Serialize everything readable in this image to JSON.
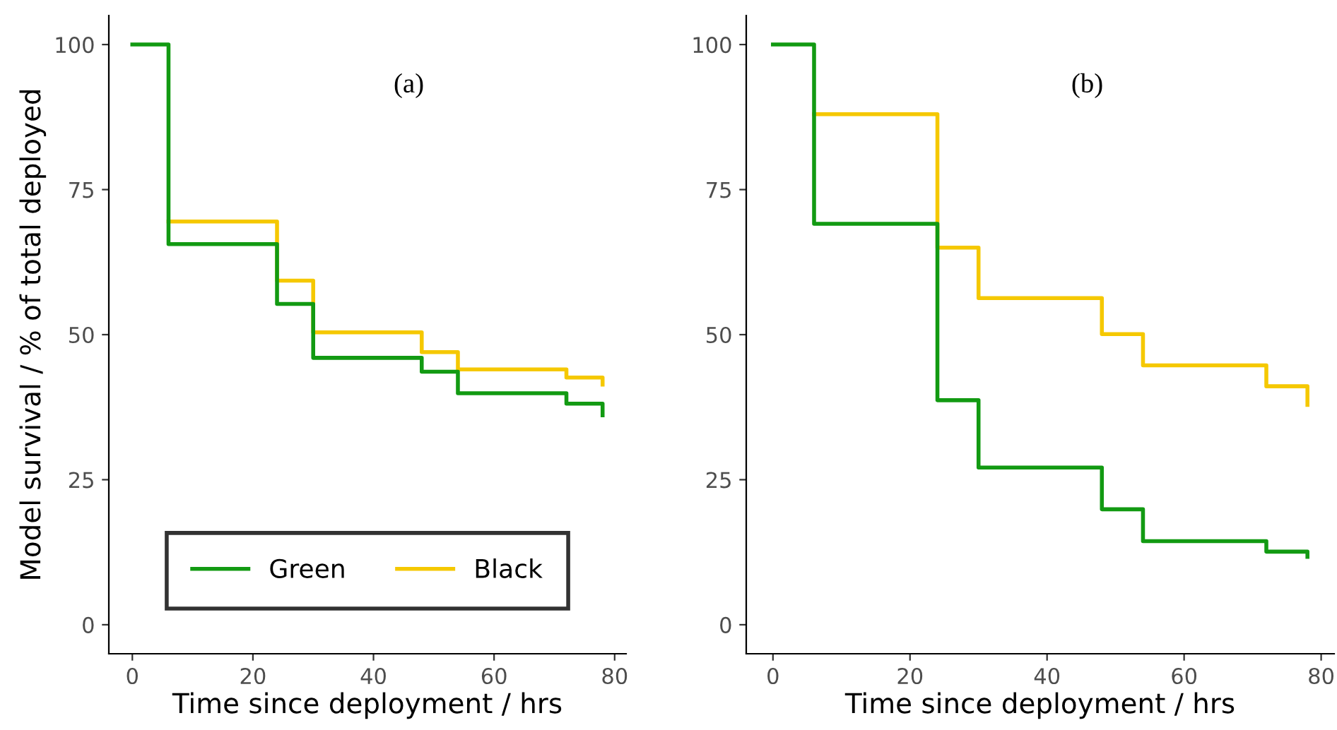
{
  "chart_data": [
    {
      "type": "step",
      "xlabel": "Time since deployment / hrs",
      "ylabel": "Model survival / % of total deployed",
      "annotations": [
        "(a)"
      ],
      "x": [
        0,
        6,
        24,
        30,
        48,
        54,
        72,
        78
      ],
      "series": [
        {
          "name": "Green",
          "color": "#129a12",
          "values": [
            100,
            65.6,
            55.3,
            46.0,
            43.6,
            39.9,
            38.1,
            36.1
          ]
        },
        {
          "name": "Black",
          "color": "#f5c800",
          "values": [
            null,
            69.5,
            59.3,
            50.4,
            47.0,
            44.0,
            42.6,
            41.4
          ]
        }
      ],
      "xlim": [
        -3.9,
        81.9
      ],
      "ylim": [
        -5,
        105
      ],
      "xticks": [
        0,
        20,
        40,
        60,
        80
      ],
      "yticks": [
        0,
        25,
        50,
        75,
        100
      ],
      "grid": false,
      "legend": "bottom",
      "line_style": "solid"
    },
    {
      "type": "step",
      "xlabel": "Time since deployment / hrs",
      "annotations": [
        "(b)"
      ],
      "x": [
        0,
        6,
        24,
        30,
        48,
        54,
        72,
        78
      ],
      "series": [
        {
          "color": "#129a12",
          "values": [
            100,
            69.1,
            38.7,
            27.1,
            19.9,
            14.4,
            12.6,
            11.7
          ]
        },
        {
          "color": "#f5c800",
          "values": [
            null,
            88.0,
            65.0,
            56.3,
            50.1,
            44.7,
            41.1,
            37.9
          ]
        }
      ],
      "xlim": [
        -3.9,
        81.9
      ],
      "ylim": [
        -5,
        105
      ],
      "xticks": [
        0,
        20,
        40,
        60,
        80
      ],
      "yticks": [
        0,
        25,
        50,
        75,
        100
      ],
      "grid": false,
      "legend": false,
      "line_style": "solid"
    }
  ]
}
